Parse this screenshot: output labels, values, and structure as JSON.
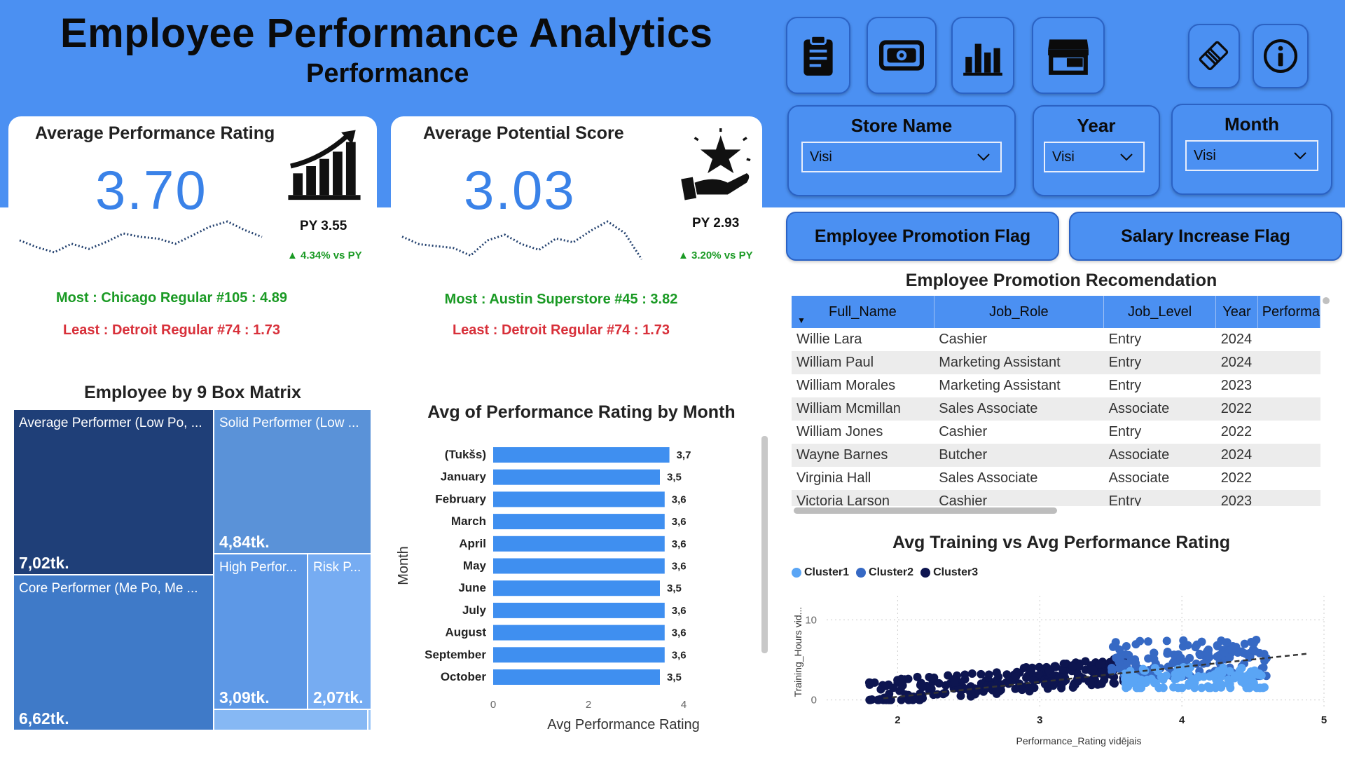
{
  "header": {
    "title": "Employee Performance Analytics",
    "subtitle": "Performance"
  },
  "nav_buttons": [
    {
      "name": "clipboard-icon"
    },
    {
      "name": "cash-icon"
    },
    {
      "name": "bar-chart-icon"
    },
    {
      "name": "store-icon"
    },
    {
      "name": "eraser-icon"
    },
    {
      "name": "info-icon"
    }
  ],
  "slicers": {
    "store": {
      "label": "Store Name",
      "value": "Visi"
    },
    "year": {
      "label": "Year",
      "value": "Visi"
    },
    "month": {
      "label": "Month",
      "value": "Visi"
    }
  },
  "flags": {
    "promotion": "Employee Promotion Flag",
    "salary": "Salary Increase Flag"
  },
  "kpi_rating": {
    "title": "Average Performance Rating",
    "value": "3.70",
    "py": "PY 3.55",
    "delta": "▲ 4.34% vs PY",
    "most": "Most : Chicago Regular #105 : 4.89",
    "least": "Least : Detroit Regular #74 : 1.73",
    "sparkline": [
      3.62,
      3.58,
      3.55,
      3.6,
      3.57,
      3.61,
      3.66,
      3.64,
      3.63,
      3.6,
      3.65,
      3.7,
      3.73,
      3.68,
      3.64
    ],
    "icon": "growth-chart-icon"
  },
  "kpi_potential": {
    "title": "Average Potential Score",
    "value": "3.03",
    "py": "PY 2.93",
    "delta": "▲ 3.20% vs PY",
    "most": "Most : Austin Superstore #45 : 3.82",
    "least": "Least : Detroit Regular #74 : 1.73",
    "sparkline": [
      3.02,
      2.98,
      2.97,
      2.96,
      2.92,
      3.0,
      3.03,
      2.98,
      2.95,
      3.01,
      2.99,
      3.05,
      3.1,
      3.04,
      2.9
    ],
    "icon": "hand-star-icon"
  },
  "nine_box": {
    "title": "Employee by 9 Box Matrix",
    "cells": [
      {
        "label": "Average Performer (Low Po, ...",
        "value": "7,02tk.",
        "color": "#1f3f78"
      },
      {
        "label": "Solid Performer (Low ...",
        "value": "4,84tk.",
        "color": "#5a92d8"
      },
      {
        "label": "Core Performer (Me Po, Me ...",
        "value": "6,62tk.",
        "color": "#3f7ac8"
      },
      {
        "label": "High Perfor...",
        "value": "3,09tk.",
        "color": "#5d98e6"
      },
      {
        "label": "Risk P...",
        "value": "2,07tk.",
        "color": "#76acf2"
      }
    ]
  },
  "bar_chart": {
    "title": "Avg of Performance Rating by Month",
    "ylabel": "Month",
    "xlabel": "Avg Performance Rating",
    "color": "#3f8ff0"
  },
  "chart_data": [
    {
      "type": "bar",
      "title": "Avg of Performance Rating by Month",
      "xlabel": "Avg Performance Rating",
      "ylabel": "Month",
      "categories": [
        "(Tukšs)",
        "January",
        "February",
        "March",
        "April",
        "May",
        "June",
        "July",
        "August",
        "September",
        "October"
      ],
      "values": [
        3.7,
        3.5,
        3.6,
        3.6,
        3.6,
        3.6,
        3.5,
        3.6,
        3.6,
        3.6,
        3.5
      ],
      "value_labels": [
        "3,7",
        "3,5",
        "3,6",
        "3,6",
        "3,6",
        "3,6",
        "3,5",
        "3,6",
        "3,6",
        "3,6",
        "3,5"
      ],
      "xlim": [
        0,
        4
      ],
      "xticks": [
        "0",
        "2",
        "4"
      ]
    },
    {
      "type": "scatter",
      "title": "Avg Training vs Avg Performance Rating",
      "xlabel": "Performance_Rating vidējais",
      "ylabel": "Training_Hours vid...",
      "xlim": [
        1.5,
        5
      ],
      "ylim": [
        -1,
        13
      ],
      "xticks": [
        "2",
        "3",
        "4",
        "5"
      ],
      "yticks": [
        "0",
        "10"
      ],
      "series": [
        {
          "name": "Cluster1",
          "color": "#5aa5f5",
          "x_range": [
            3.6,
            4.6
          ],
          "y_range": [
            1.5,
            5
          ]
        },
        {
          "name": "Cluster2",
          "color": "#3669c4",
          "x_range": [
            3.5,
            4.6
          ],
          "y_range": [
            3,
            12.3
          ]
        },
        {
          "name": "Cluster3",
          "color": "#0d1550",
          "x_range": [
            1.8,
            3.6
          ],
          "y_range": [
            0,
            8.6
          ]
        }
      ],
      "trendline": {
        "style": "dashed",
        "from": [
          1.9,
          0.2
        ],
        "to": [
          4.9,
          5.8
        ]
      }
    }
  ],
  "promo_table": {
    "title": "Employee Promotion Recomendation",
    "columns": [
      "Full_Name",
      "Job_Role",
      "Job_Level",
      "Year",
      "Performa"
    ],
    "rows": [
      [
        "Willie Lara",
        "Cashier",
        "Entry",
        "2024"
      ],
      [
        "William Paul",
        "Marketing Assistant",
        "Entry",
        "2024"
      ],
      [
        "William Morales",
        "Marketing Assistant",
        "Entry",
        "2023"
      ],
      [
        "William Mcmillan",
        "Sales Associate",
        "Associate",
        "2022"
      ],
      [
        "William Jones",
        "Cashier",
        "Entry",
        "2022"
      ],
      [
        "Wayne Barnes",
        "Butcher",
        "Associate",
        "2024"
      ],
      [
        "Virginia Hall",
        "Sales Associate",
        "Associate",
        "2022"
      ],
      [
        "Victoria Larson",
        "Cashier",
        "Entry",
        "2023"
      ]
    ]
  },
  "scatter": {
    "title": "Avg Training vs Avg Performance Rating",
    "legend": [
      "Cluster1",
      "Cluster2",
      "Cluster3"
    ]
  }
}
